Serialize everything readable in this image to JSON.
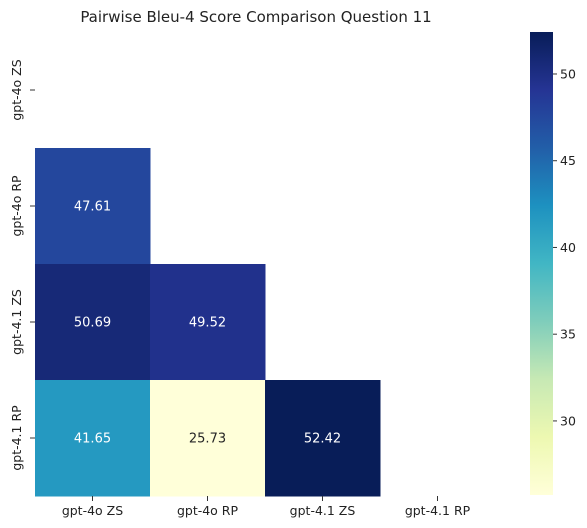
{
  "chart_data": {
    "type": "heatmap",
    "title": "Pairwise Bleu-4 Score Comparison Question 11",
    "xlabel": "",
    "ylabel": "",
    "x_categories": [
      "gpt-4o ZS",
      "gpt-4o RP",
      "gpt-4.1 ZS",
      "gpt-4.1 RP"
    ],
    "y_categories": [
      "gpt-4o ZS",
      "gpt-4o RP",
      "gpt-4.1 ZS",
      "gpt-4.1 RP"
    ],
    "values": [
      [
        null,
        null,
        null,
        null
      ],
      [
        47.61,
        null,
        null,
        null
      ],
      [
        50.69,
        49.52,
        null,
        null
      ],
      [
        41.65,
        25.73,
        52.42,
        null
      ]
    ],
    "labels": [
      [
        null,
        null,
        null,
        null
      ],
      [
        "47.61",
        null,
        null,
        null
      ],
      [
        "50.69",
        "49.52",
        null,
        null
      ],
      [
        "41.65",
        "25.73",
        "52.42",
        null
      ]
    ],
    "mask": "upper triangle incl. diagonal",
    "colormap": "YlGnBu",
    "vmin": 25.73,
    "vmax": 52.42,
    "colorbar_ticks": [
      30,
      35,
      40,
      45,
      50
    ],
    "colorbar_tick_labels": [
      "30",
      "35",
      "40",
      "45",
      "50"
    ],
    "grid": false,
    "annotation_color_light": "#ffffff",
    "annotation_color_dark": "#262626"
  }
}
